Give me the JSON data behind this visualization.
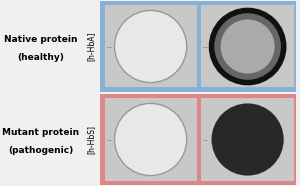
{
  "fig_width": 3.0,
  "fig_height": 1.86,
  "dpi": 100,
  "bg_color": "#f0f0f0",
  "rows": [
    {
      "label_main": "Native protein",
      "label_sub": "(healthy)",
      "bracket_label": "[h-HbA]",
      "box_color": "#8ab0d8",
      "panels": [
        {
          "type": "empty_drop",
          "bg": "#c8c8c8",
          "circle_edge": "#999999",
          "circle_fill": "#e8e8e8"
        },
        {
          "type": "ring_drop",
          "bg": "#c8c8c8",
          "outer_color": "#111111",
          "inner_color": "#b0b0b0",
          "ring_color": "#111111"
        }
      ]
    },
    {
      "label_main": "Mutant protein",
      "label_sub": "(pathogenic)",
      "bracket_label": "[h-HbS]",
      "box_color": "#dd8888",
      "panels": [
        {
          "type": "empty_drop",
          "bg": "#c8c8c8",
          "circle_edge": "#999999",
          "circle_fill": "#e8e8e8"
        },
        {
          "type": "solid_drop",
          "bg": "#c8c8c8",
          "circle_fill": "#282828"
        }
      ]
    }
  ],
  "label_main_fontsize": 6.5,
  "label_sub_fontsize": 6.5,
  "bracket_fontsize": 5.5
}
